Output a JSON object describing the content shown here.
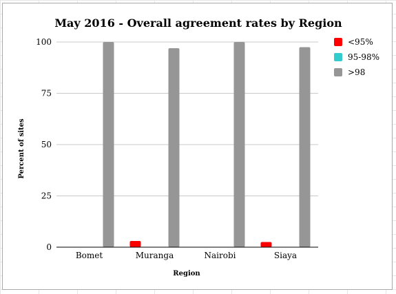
{
  "chart_data": {
    "type": "bar",
    "title": "May  2016 - Overall agreement rates by Region",
    "xlabel": "Region",
    "ylabel": "Percent of sites",
    "ylim": [
      0,
      100
    ],
    "yticks": [
      0,
      25,
      50,
      75,
      100
    ],
    "categories": [
      "Bomet",
      "Muranga",
      "Nairobi",
      "Siaya"
    ],
    "series": [
      {
        "name": "<95%",
        "color": "#ff0000",
        "values": [
          0,
          3,
          0,
          2.5
        ]
      },
      {
        "name": "95-98%",
        "color": "#33cccc",
        "values": [
          0,
          0,
          0,
          0
        ]
      },
      {
        "name": ">98",
        "color": "#969696",
        "values": [
          100,
          97,
          100,
          97.5
        ]
      }
    ],
    "grid": true,
    "legend_position": "right"
  }
}
